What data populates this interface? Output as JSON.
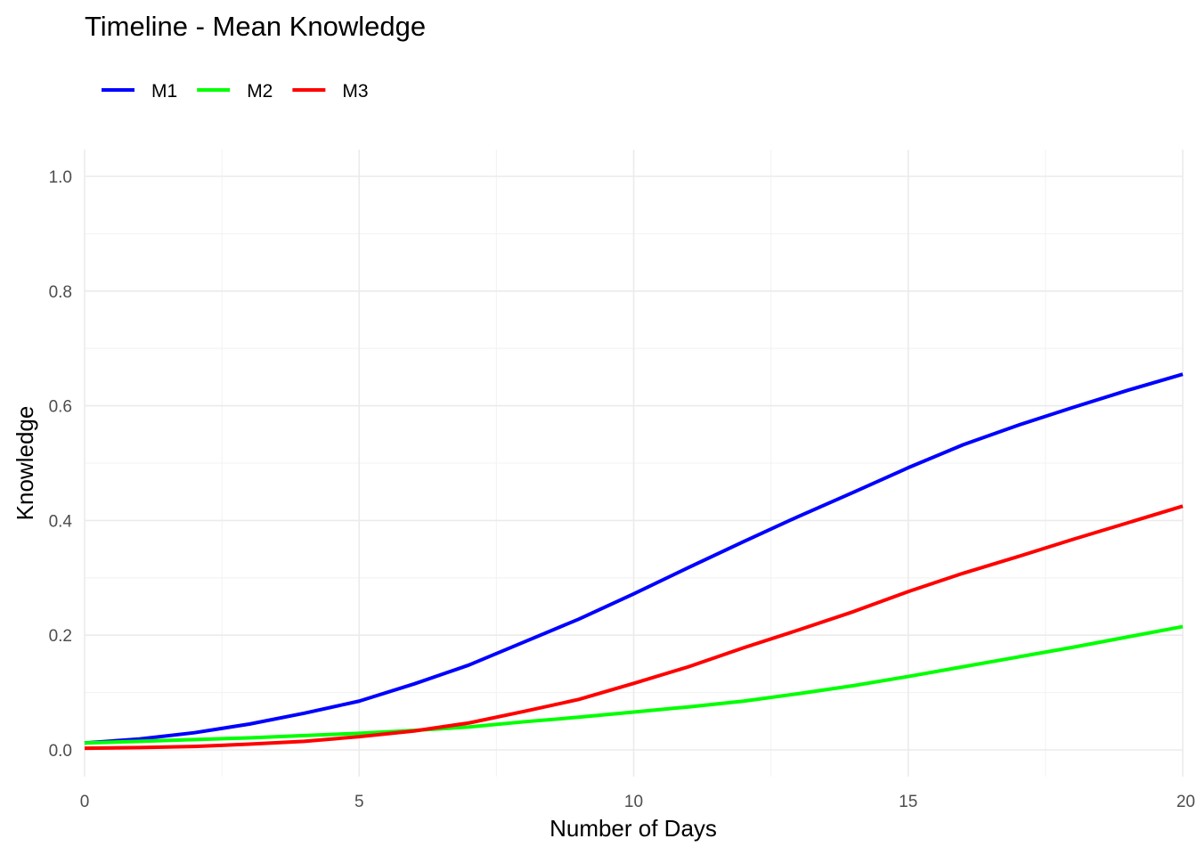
{
  "chart_data": {
    "type": "line",
    "title": "Timeline - Mean Knowledge",
    "xlabel": "Number of Days",
    "ylabel": "Knowledge",
    "xlim": [
      0,
      20
    ],
    "ylim": [
      0,
      1
    ],
    "x_ticks": [
      0,
      5,
      10,
      15,
      20
    ],
    "x_tick_labels": [
      "0",
      "5",
      "10",
      "15",
      "20"
    ],
    "y_ticks": [
      0,
      0.2,
      0.4,
      0.6,
      0.8,
      1.0
    ],
    "y_tick_labels": [
      "0.0",
      "0.2",
      "0.4",
      "0.6",
      "0.8",
      "1.0"
    ],
    "grid": true,
    "legend_position": "top-left",
    "x": [
      0,
      1,
      2,
      3,
      4,
      5,
      6,
      7,
      8,
      9,
      10,
      11,
      12,
      13,
      14,
      15,
      16,
      17,
      18,
      19,
      20
    ],
    "series": [
      {
        "name": "M1",
        "color": "#0000ff",
        "values": [
          0.012,
          0.019,
          0.03,
          0.045,
          0.064,
          0.085,
          0.115,
          0.148,
          0.188,
          0.228,
          0.272,
          0.318,
          0.363,
          0.407,
          0.449,
          0.492,
          0.532,
          0.566,
          0.597,
          0.627,
          0.655
        ]
      },
      {
        "name": "M2",
        "color": "#00ff00",
        "values": [
          0.012,
          0.015,
          0.018,
          0.021,
          0.025,
          0.029,
          0.034,
          0.04,
          0.049,
          0.057,
          0.066,
          0.075,
          0.085,
          0.098,
          0.112,
          0.128,
          0.145,
          0.162,
          0.179,
          0.197,
          0.215
        ]
      },
      {
        "name": "M3",
        "color": "#ff0000",
        "values": [
          0.003,
          0.004,
          0.006,
          0.01,
          0.015,
          0.023,
          0.033,
          0.047,
          0.067,
          0.088,
          0.116,
          0.145,
          0.178,
          0.209,
          0.241,
          0.276,
          0.308,
          0.337,
          0.367,
          0.396,
          0.425
        ]
      }
    ]
  }
}
